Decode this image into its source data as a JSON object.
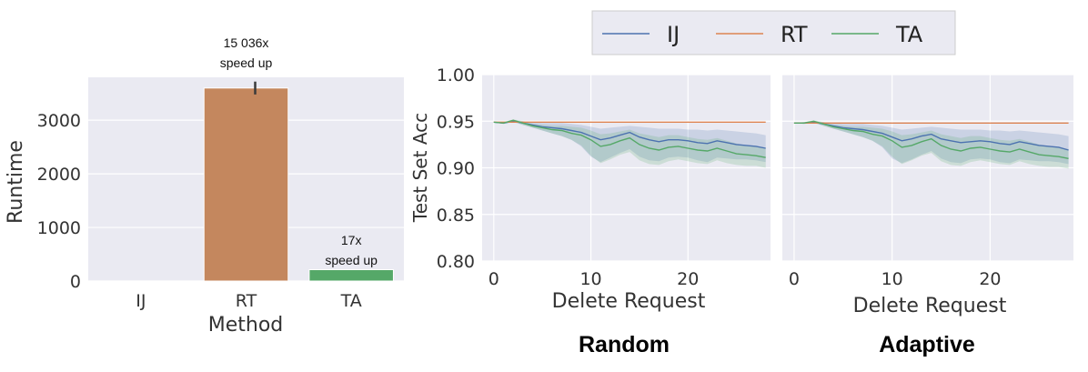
{
  "chart_data": [
    {
      "type": "bar",
      "xlabel": "Method",
      "ylabel": "Runtime",
      "categories": [
        "IJ",
        "RT",
        "TA"
      ],
      "values": [
        0.24,
        3600,
        212
      ],
      "error": [
        null,
        [
          3480,
          3720
        ],
        null
      ],
      "ylim": [
        0,
        3800
      ],
      "yticks": [
        0,
        1000,
        2000,
        3000
      ],
      "colors": [
        "#4c72b0",
        "#c4875e",
        "#55a868"
      ],
      "annotations": [
        {
          "category": "RT",
          "lines": [
            "15 036x",
            "speed up"
          ]
        },
        {
          "category": "TA",
          "lines": [
            "17x",
            "speed up"
          ]
        }
      ],
      "grid": true
    },
    {
      "type": "line",
      "title": "Random",
      "xlabel": "Delete Request",
      "ylabel": "Test Set Acc",
      "ylim": [
        0.8,
        1.0
      ],
      "yticks": [
        "0.80",
        "0.85",
        "0.90",
        "0.95",
        "1.00"
      ],
      "xticks": [
        0,
        10,
        20
      ],
      "xlim": [
        -1.2,
        28.5
      ],
      "x": [
        0,
        1,
        2,
        3,
        4,
        5,
        6,
        7,
        8,
        9,
        10,
        11,
        12,
        13,
        14,
        15,
        16,
        17,
        18,
        19,
        20,
        21,
        22,
        23,
        24,
        25,
        26,
        27,
        28
      ],
      "series": [
        {
          "name": "IJ",
          "color": "#4c72b0",
          "values": [
            0.949,
            0.948,
            0.95,
            0.948,
            0.946,
            0.944,
            0.943,
            0.942,
            0.94,
            0.938,
            0.934,
            0.93,
            0.932,
            0.935,
            0.938,
            0.933,
            0.93,
            0.928,
            0.93,
            0.93,
            0.929,
            0.927,
            0.926,
            0.929,
            0.927,
            0.925,
            0.924,
            0.923,
            0.921
          ],
          "band_lower": [
            0.949,
            0.947,
            0.949,
            0.946,
            0.943,
            0.94,
            0.937,
            0.934,
            0.93,
            0.923,
            0.912,
            0.906,
            0.911,
            0.916,
            0.92,
            0.912,
            0.908,
            0.907,
            0.911,
            0.912,
            0.911,
            0.908,
            0.906,
            0.911,
            0.91,
            0.909,
            0.909,
            0.908,
            0.906
          ],
          "band_upper": [
            0.949,
            0.949,
            0.951,
            0.95,
            0.949,
            0.948,
            0.948,
            0.948,
            0.947,
            0.946,
            0.944,
            0.942,
            0.943,
            0.944,
            0.945,
            0.944,
            0.943,
            0.942,
            0.942,
            0.942,
            0.941,
            0.941,
            0.94,
            0.941,
            0.94,
            0.939,
            0.938,
            0.937,
            0.935
          ]
        },
        {
          "name": "RT",
          "color": "#dd8452",
          "values": [
            0.949,
            0.949,
            0.949,
            0.949,
            0.949,
            0.949,
            0.949,
            0.949,
            0.949,
            0.949,
            0.949,
            0.949,
            0.949,
            0.949,
            0.949,
            0.949,
            0.949,
            0.949,
            0.949,
            0.949,
            0.949,
            0.949,
            0.949,
            0.949,
            0.949,
            0.949,
            0.949,
            0.949,
            0.949
          ]
        },
        {
          "name": "TA",
          "color": "#55a868",
          "values": [
            0.949,
            0.948,
            0.951,
            0.948,
            0.945,
            0.943,
            0.941,
            0.94,
            0.937,
            0.935,
            0.93,
            0.923,
            0.925,
            0.929,
            0.932,
            0.925,
            0.921,
            0.919,
            0.922,
            0.923,
            0.921,
            0.919,
            0.918,
            0.921,
            0.918,
            0.915,
            0.914,
            0.913,
            0.911
          ],
          "band_lower": [
            0.949,
            0.947,
            0.95,
            0.946,
            0.943,
            0.94,
            0.937,
            0.934,
            0.93,
            0.924,
            0.913,
            0.905,
            0.909,
            0.914,
            0.917,
            0.908,
            0.904,
            0.903,
            0.907,
            0.909,
            0.907,
            0.905,
            0.904,
            0.908,
            0.905,
            0.903,
            0.902,
            0.902,
            0.9
          ],
          "band_upper": [
            0.949,
            0.949,
            0.952,
            0.95,
            0.947,
            0.946,
            0.945,
            0.945,
            0.944,
            0.943,
            0.94,
            0.936,
            0.937,
            0.939,
            0.941,
            0.937,
            0.935,
            0.933,
            0.935,
            0.935,
            0.933,
            0.931,
            0.93,
            0.932,
            0.929,
            0.926,
            0.924,
            0.923,
            0.921
          ]
        }
      ],
      "grid": true
    },
    {
      "type": "line",
      "title": "Adaptive",
      "xlabel": "Delete Request",
      "ylabel": "",
      "ylim": [
        0.8,
        1.0
      ],
      "xticks": [
        0,
        10,
        20
      ],
      "xlim": [
        -1.2,
        28.5
      ],
      "x": [
        0,
        1,
        2,
        3,
        4,
        5,
        6,
        7,
        8,
        9,
        10,
        11,
        12,
        13,
        14,
        15,
        16,
        17,
        18,
        19,
        20,
        21,
        22,
        23,
        24,
        25,
        26,
        27,
        28
      ],
      "series": [
        {
          "name": "IJ",
          "color": "#4c72b0",
          "values": [
            0.948,
            0.948,
            0.949,
            0.947,
            0.945,
            0.943,
            0.942,
            0.941,
            0.939,
            0.937,
            0.933,
            0.929,
            0.931,
            0.934,
            0.936,
            0.931,
            0.929,
            0.927,
            0.928,
            0.929,
            0.928,
            0.926,
            0.925,
            0.928,
            0.926,
            0.924,
            0.923,
            0.922,
            0.919
          ],
          "band_lower": [
            0.948,
            0.947,
            0.948,
            0.945,
            0.942,
            0.939,
            0.936,
            0.933,
            0.929,
            0.922,
            0.91,
            0.905,
            0.909,
            0.914,
            0.918,
            0.91,
            0.906,
            0.905,
            0.909,
            0.91,
            0.909,
            0.906,
            0.905,
            0.909,
            0.908,
            0.907,
            0.907,
            0.906,
            0.904
          ],
          "band_upper": [
            0.948,
            0.949,
            0.95,
            0.949,
            0.948,
            0.947,
            0.947,
            0.947,
            0.946,
            0.945,
            0.943,
            0.941,
            0.942,
            0.943,
            0.944,
            0.943,
            0.942,
            0.941,
            0.941,
            0.941,
            0.94,
            0.94,
            0.939,
            0.94,
            0.939,
            0.938,
            0.937,
            0.936,
            0.934
          ]
        },
        {
          "name": "RT",
          "color": "#dd8452",
          "values": [
            0.948,
            0.948,
            0.948,
            0.948,
            0.948,
            0.948,
            0.948,
            0.948,
            0.948,
            0.948,
            0.948,
            0.948,
            0.948,
            0.948,
            0.948,
            0.948,
            0.948,
            0.948,
            0.948,
            0.948,
            0.948,
            0.948,
            0.948,
            0.948,
            0.948,
            0.948,
            0.948,
            0.948,
            0.948
          ]
        },
        {
          "name": "TA",
          "color": "#55a868",
          "values": [
            0.948,
            0.948,
            0.95,
            0.947,
            0.944,
            0.942,
            0.94,
            0.939,
            0.936,
            0.934,
            0.929,
            0.922,
            0.924,
            0.928,
            0.931,
            0.924,
            0.92,
            0.918,
            0.921,
            0.922,
            0.92,
            0.918,
            0.917,
            0.92,
            0.917,
            0.914,
            0.913,
            0.912,
            0.91
          ],
          "band_lower": [
            0.948,
            0.947,
            0.949,
            0.945,
            0.942,
            0.939,
            0.936,
            0.933,
            0.929,
            0.923,
            0.912,
            0.904,
            0.908,
            0.913,
            0.916,
            0.907,
            0.903,
            0.902,
            0.906,
            0.908,
            0.906,
            0.904,
            0.903,
            0.907,
            0.904,
            0.902,
            0.901,
            0.901,
            0.899
          ],
          "band_upper": [
            0.948,
            0.949,
            0.951,
            0.949,
            0.946,
            0.945,
            0.944,
            0.944,
            0.943,
            0.942,
            0.939,
            0.935,
            0.936,
            0.938,
            0.94,
            0.936,
            0.934,
            0.932,
            0.934,
            0.934,
            0.932,
            0.93,
            0.929,
            0.931,
            0.928,
            0.925,
            0.923,
            0.922,
            0.92
          ]
        }
      ],
      "grid": true
    }
  ],
  "legend": {
    "placement": "top-center",
    "entries": [
      {
        "label": "IJ",
        "color": "#4c72b0"
      },
      {
        "label": "RT",
        "color": "#dd8452"
      },
      {
        "label": "TA",
        "color": "#55a868"
      }
    ]
  }
}
